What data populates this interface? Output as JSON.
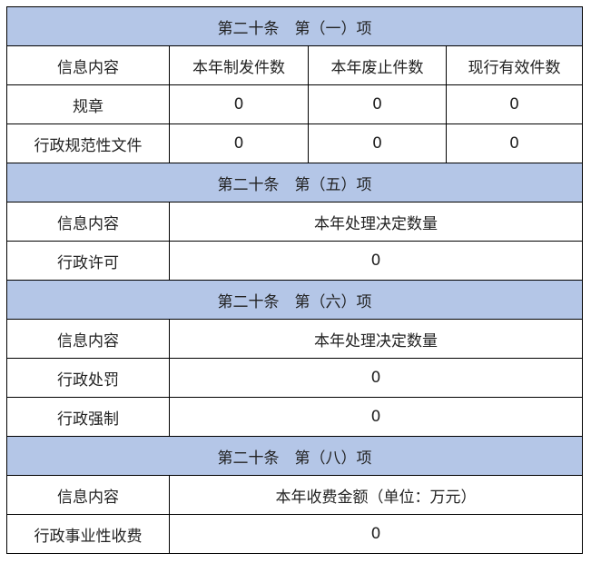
{
  "header_color": "#b4c6e7",
  "s1": {
    "title": "第二十条　第（一）项",
    "headers": [
      "信息内容",
      "本年制发件数",
      "本年废止件数",
      "现行有效件数"
    ],
    "rows": [
      {
        "label": "规章",
        "values": [
          "0",
          "0",
          "0"
        ]
      },
      {
        "label": "行政规范性文件",
        "values": [
          "0",
          "0",
          "0"
        ]
      }
    ]
  },
  "s5": {
    "title": "第二十条　第（五）项",
    "headers": [
      "信息内容",
      "本年处理决定数量"
    ],
    "rows": [
      {
        "label": "行政许可",
        "value": "0"
      }
    ]
  },
  "s6": {
    "title": "第二十条　第（六）项",
    "headers": [
      "信息内容",
      "本年处理决定数量"
    ],
    "rows": [
      {
        "label": "行政处罚",
        "value": "0"
      },
      {
        "label": "行政强制",
        "value": "0"
      }
    ]
  },
  "s8": {
    "title": "第二十条　第（八）项",
    "headers": [
      "信息内容",
      "本年收费金额（单位：万元）"
    ],
    "rows": [
      {
        "label": "行政事业性收费",
        "value": "0"
      }
    ]
  }
}
